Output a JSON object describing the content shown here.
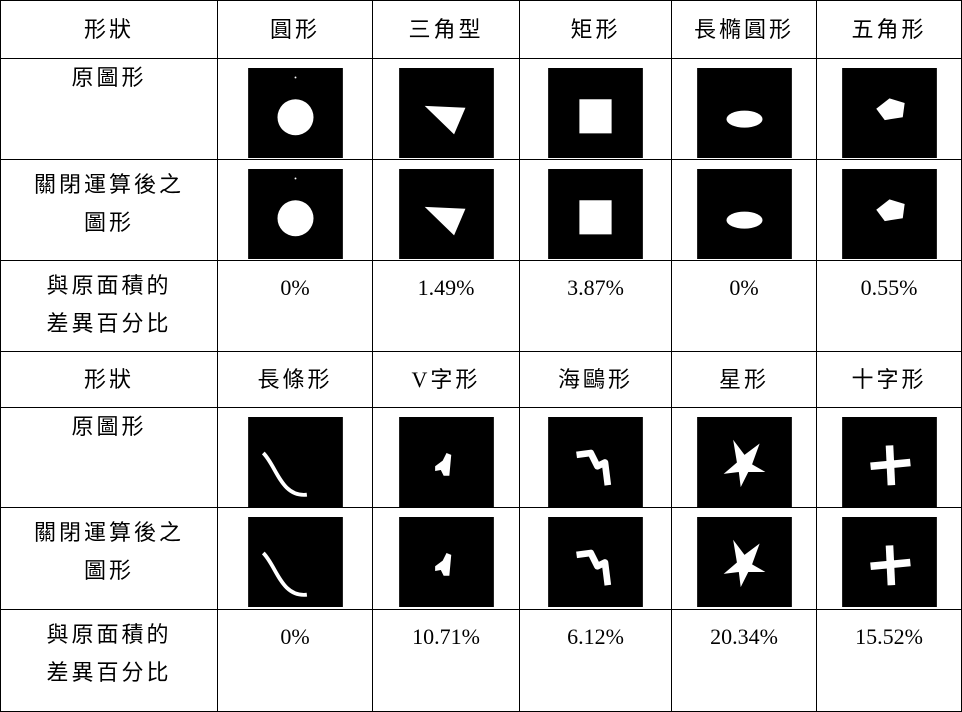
{
  "table": {
    "blocks": [
      {
        "header_label": "形狀",
        "shapes": [
          "圓形",
          "三角型",
          "矩形",
          "長橢圓形",
          "五角形"
        ],
        "original_label": "原圖形",
        "closed_label": [
          "關閉運算後之",
          "圖形"
        ],
        "diff_label": [
          "與原面積的",
          "差異百分比"
        ],
        "diffs": [
          "0%",
          "1.49%",
          "3.87%",
          "0%",
          "0.55%"
        ]
      },
      {
        "header_label": "形狀",
        "shapes": [
          "長條形",
          "V字形",
          "海鷗形",
          "星形",
          "十字形"
        ],
        "original_label": "原圖形",
        "closed_label": [
          "關閉運算後之",
          "圖形"
        ],
        "diff_label": [
          "與原面積的",
          "差異百分比"
        ],
        "diffs": [
          "0%",
          "10.71%",
          "6.12%",
          "20.34%",
          "15.52%"
        ]
      }
    ]
  }
}
